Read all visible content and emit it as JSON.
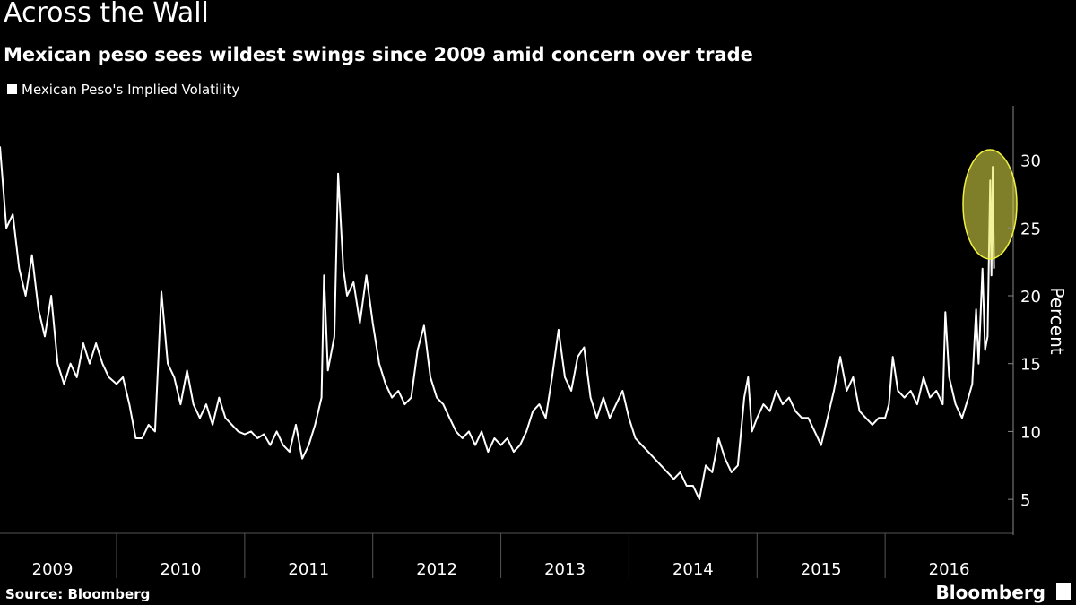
{
  "chart_data": {
    "type": "line",
    "title": "Across the Wall",
    "subtitle": "Mexican peso sees wildest swings since 2009 amid concern over trade",
    "y_label": "Percent",
    "source": "Source: Bloomberg",
    "logo": "Bloomberg",
    "xlim": [
      2009.09,
      2017
    ],
    "xticks": [
      2009,
      2010,
      2011,
      2012,
      2013,
      2014,
      2015,
      2016
    ],
    "ylim": [
      2.5,
      34
    ],
    "yticks": [
      5,
      10,
      15,
      20,
      25,
      30
    ],
    "x": [
      2009.09,
      2009.14,
      2009.19,
      2009.24,
      2009.29,
      2009.34,
      2009.39,
      2009.44,
      2009.49,
      2009.54,
      2009.59,
      2009.64,
      2009.69,
      2009.74,
      2009.79,
      2009.84,
      2009.89,
      2009.94,
      2010.0,
      2010.05,
      2010.1,
      2010.15,
      2010.2,
      2010.25,
      2010.3,
      2010.35,
      2010.4,
      2010.45,
      2010.5,
      2010.55,
      2010.6,
      2010.65,
      2010.7,
      2010.75,
      2010.8,
      2010.85,
      2010.9,
      2010.95,
      2011.0,
      2011.05,
      2011.1,
      2011.15,
      2011.2,
      2011.25,
      2011.3,
      2011.35,
      2011.4,
      2011.45,
      2011.5,
      2011.55,
      2011.6,
      2011.62,
      2011.65,
      2011.7,
      2011.73,
      2011.77,
      2011.8,
      2011.85,
      2011.9,
      2011.95,
      2012.0,
      2012.05,
      2012.1,
      2012.15,
      2012.2,
      2012.25,
      2012.3,
      2012.35,
      2012.4,
      2012.45,
      2012.5,
      2012.55,
      2012.6,
      2012.65,
      2012.7,
      2012.75,
      2012.8,
      2012.85,
      2012.9,
      2012.95,
      2013.0,
      2013.05,
      2013.1,
      2013.15,
      2013.2,
      2013.25,
      2013.3,
      2013.35,
      2013.4,
      2013.45,
      2013.5,
      2013.55,
      2013.6,
      2013.65,
      2013.7,
      2013.75,
      2013.8,
      2013.85,
      2013.9,
      2013.95,
      2014.0,
      2014.05,
      2014.1,
      2014.15,
      2014.2,
      2014.25,
      2014.3,
      2014.35,
      2014.4,
      2014.45,
      2014.5,
      2014.55,
      2014.6,
      2014.65,
      2014.7,
      2014.75,
      2014.8,
      2014.85,
      2014.9,
      2014.93,
      2014.96,
      2015.0,
      2015.05,
      2015.1,
      2015.15,
      2015.2,
      2015.25,
      2015.3,
      2015.35,
      2015.4,
      2015.45,
      2015.5,
      2015.55,
      2015.6,
      2015.65,
      2015.7,
      2015.75,
      2015.8,
      2015.85,
      2015.9,
      2015.95,
      2016.0,
      2016.03,
      2016.06,
      2016.1,
      2016.15,
      2016.2,
      2016.25,
      2016.3,
      2016.35,
      2016.4,
      2016.45,
      2016.47,
      2016.5,
      2016.55,
      2016.6,
      2016.65,
      2016.68,
      2016.71,
      2016.73,
      2016.76,
      2016.78,
      2016.8,
      2016.82,
      2016.83,
      2016.84,
      2016.85
    ],
    "series": [
      {
        "name": "Mexican Peso's Implied Volatility",
        "color": "#ffffff",
        "values": [
          31,
          25,
          26,
          22,
          20,
          23,
          19,
          17,
          20,
          15,
          13.5,
          15,
          14,
          16.5,
          15,
          16.5,
          15,
          14,
          13.5,
          14,
          12,
          9.5,
          9.5,
          10.5,
          10,
          20.3,
          15,
          14,
          12,
          14.5,
          12,
          11,
          12,
          10.5,
          12.5,
          11,
          10.5,
          10,
          9.8,
          10,
          9.5,
          9.8,
          9,
          10,
          9,
          8.5,
          10.5,
          8,
          9,
          10.5,
          12.5,
          21.5,
          14.5,
          17,
          29,
          22,
          20,
          21,
          18,
          21.5,
          18,
          15,
          13.5,
          12.5,
          13,
          12,
          12.5,
          16,
          17.8,
          14,
          12.5,
          12,
          11,
          10,
          9.5,
          10,
          9,
          10,
          8.5,
          9.5,
          9,
          9.5,
          8.5,
          9,
          10,
          11.5,
          12,
          11,
          14,
          17.5,
          14,
          13,
          15.5,
          16.2,
          12.5,
          11,
          12.5,
          11,
          12,
          13,
          11,
          9.5,
          9,
          8.5,
          8,
          7.5,
          7,
          6.5,
          7,
          6,
          6,
          5,
          7.5,
          7,
          9.5,
          8,
          7,
          7.5,
          12.5,
          14,
          10,
          11,
          12,
          11.5,
          13,
          12,
          12.5,
          11.5,
          11,
          11,
          10,
          9,
          11,
          13,
          15.5,
          13,
          14,
          11.5,
          11,
          10.5,
          11,
          11,
          12,
          15.5,
          13,
          12.5,
          13,
          12,
          14,
          12.5,
          13,
          12,
          18.8,
          14,
          12,
          11,
          12.5,
          13.5,
          19,
          15,
          22,
          16,
          17,
          28.5,
          21.5,
          29.5,
          22
        ]
      }
    ]
  }
}
